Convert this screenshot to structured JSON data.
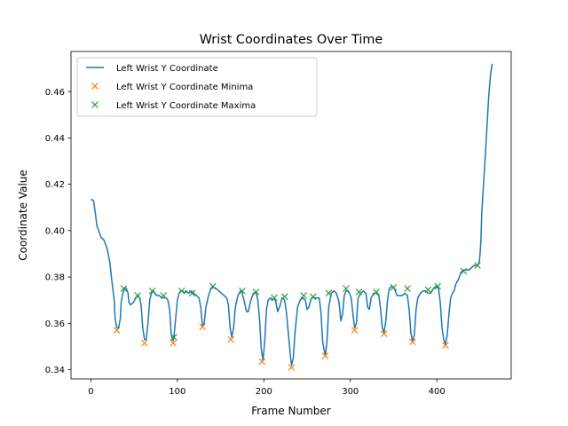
{
  "chart_data": {
    "type": "line",
    "title": "Wrist Coordinates Over Time",
    "xlabel": "Frame Number",
    "ylabel": "Coordinate Value",
    "xlim": [
      -23,
      486
    ],
    "ylim": [
      0.336,
      0.4773
    ],
    "xticks": [
      0,
      100,
      200,
      300,
      400
    ],
    "yticks": [
      0.34,
      0.36,
      0.38,
      0.4,
      0.42,
      0.44,
      0.46
    ],
    "ytick_labels": [
      "0.34",
      "0.36",
      "0.38",
      "0.40",
      "0.42",
      "0.44",
      "0.46"
    ],
    "legend_position": "upper-left",
    "colors": {
      "line": "#1f77b4",
      "minima": "#ff7f0e",
      "maxima": "#2ca02c"
    },
    "series": [
      {
        "name": "Left Wrist Y Coordinate",
        "kind": "line",
        "points": [
          [
            0,
            0.4135
          ],
          [
            3,
            0.413
          ],
          [
            5,
            0.408
          ],
          [
            7,
            0.402
          ],
          [
            10,
            0.399
          ],
          [
            12,
            0.397
          ],
          [
            15,
            0.396
          ],
          [
            17,
            0.394
          ],
          [
            19,
            0.392
          ],
          [
            20,
            0.39
          ],
          [
            22,
            0.386
          ],
          [
            24,
            0.379
          ],
          [
            25,
            0.376
          ],
          [
            27,
            0.37
          ],
          [
            28,
            0.362
          ],
          [
            30,
            0.358
          ],
          [
            32,
            0.358
          ],
          [
            34,
            0.362
          ],
          [
            35,
            0.369
          ],
          [
            37,
            0.373
          ],
          [
            39,
            0.3752
          ],
          [
            41,
            0.375
          ],
          [
            43,
            0.373
          ],
          [
            44,
            0.369
          ],
          [
            46,
            0.368
          ],
          [
            49,
            0.369
          ],
          [
            52,
            0.371
          ],
          [
            55,
            0.372
          ],
          [
            57,
            0.37
          ],
          [
            58,
            0.368
          ],
          [
            60,
            0.358
          ],
          [
            62,
            0.353
          ],
          [
            64,
            0.353
          ],
          [
            66,
            0.36
          ],
          [
            68,
            0.37
          ],
          [
            70,
            0.373
          ],
          [
            72,
            0.374
          ],
          [
            74,
            0.373
          ],
          [
            76,
            0.372
          ],
          [
            79,
            0.372
          ],
          [
            82,
            0.371
          ],
          [
            84,
            0.371
          ],
          [
            87,
            0.371
          ],
          [
            89,
            0.37
          ],
          [
            91,
            0.366
          ],
          [
            93,
            0.355
          ],
          [
            95,
            0.3525
          ],
          [
            96,
            0.354
          ],
          [
            98,
            0.362
          ],
          [
            100,
            0.37
          ],
          [
            102,
            0.373
          ],
          [
            104,
            0.374
          ],
          [
            106,
            0.374
          ],
          [
            108,
            0.373
          ],
          [
            110,
            0.374
          ],
          [
            113,
            0.373
          ],
          [
            116,
            0.374
          ],
          [
            119,
            0.373
          ],
          [
            122,
            0.372
          ],
          [
            125,
            0.371
          ],
          [
            127,
            0.367
          ],
          [
            129,
            0.359
          ],
          [
            131,
            0.36
          ],
          [
            133,
            0.367
          ],
          [
            136,
            0.372
          ],
          [
            139,
            0.375
          ],
          [
            142,
            0.3755
          ],
          [
            145,
            0.375
          ],
          [
            148,
            0.374
          ],
          [
            151,
            0.373
          ],
          [
            154,
            0.372
          ],
          [
            157,
            0.371
          ],
          [
            159,
            0.368
          ],
          [
            161,
            0.358
          ],
          [
            163,
            0.354
          ],
          [
            165,
            0.358
          ],
          [
            167,
            0.367
          ],
          [
            170,
            0.372
          ],
          [
            173,
            0.374
          ],
          [
            175,
            0.373
          ],
          [
            177,
            0.37
          ],
          [
            180,
            0.365
          ],
          [
            182,
            0.365
          ],
          [
            185,
            0.37
          ],
          [
            188,
            0.373
          ],
          [
            191,
            0.3735
          ],
          [
            193,
            0.37
          ],
          [
            195,
            0.362
          ],
          [
            197,
            0.349
          ],
          [
            199,
            0.344
          ],
          [
            201,
            0.352
          ],
          [
            203,
            0.366
          ],
          [
            205,
            0.37
          ],
          [
            208,
            0.371
          ],
          [
            210,
            0.37
          ],
          [
            212,
            0.371
          ],
          [
            214,
            0.369
          ],
          [
            216,
            0.365
          ],
          [
            219,
            0.368
          ],
          [
            221,
            0.371
          ],
          [
            224,
            0.37
          ],
          [
            226,
            0.365
          ],
          [
            228,
            0.357
          ],
          [
            231,
            0.345
          ],
          [
            232,
            0.342
          ],
          [
            234,
            0.345
          ],
          [
            236,
            0.356
          ],
          [
            239,
            0.367
          ],
          [
            242,
            0.37
          ],
          [
            245,
            0.371
          ],
          [
            248,
            0.37
          ],
          [
            250,
            0.366
          ],
          [
            252,
            0.367
          ],
          [
            255,
            0.371
          ],
          [
            258,
            0.371
          ],
          [
            261,
            0.371
          ],
          [
            264,
            0.371
          ],
          [
            266,
            0.365
          ],
          [
            268,
            0.352
          ],
          [
            271,
            0.346
          ],
          [
            273,
            0.352
          ],
          [
            275,
            0.367
          ],
          [
            278,
            0.373
          ],
          [
            281,
            0.374
          ],
          [
            284,
            0.373
          ],
          [
            287,
            0.369
          ],
          [
            289,
            0.361
          ],
          [
            291,
            0.364
          ],
          [
            293,
            0.372
          ],
          [
            295,
            0.374
          ],
          [
            297,
            0.374
          ],
          [
            299,
            0.373
          ],
          [
            301,
            0.371
          ],
          [
            303,
            0.364
          ],
          [
            305,
            0.358
          ],
          [
            307,
            0.36
          ],
          [
            309,
            0.371
          ],
          [
            312,
            0.373
          ],
          [
            315,
            0.374
          ],
          [
            318,
            0.373
          ],
          [
            320,
            0.367
          ],
          [
            322,
            0.366
          ],
          [
            324,
            0.371
          ],
          [
            327,
            0.373
          ],
          [
            330,
            0.373
          ],
          [
            333,
            0.372
          ],
          [
            335,
            0.366
          ],
          [
            337,
            0.358
          ],
          [
            339,
            0.356
          ],
          [
            341,
            0.361
          ],
          [
            343,
            0.37
          ],
          [
            345,
            0.375
          ],
          [
            348,
            0.376
          ],
          [
            351,
            0.375
          ],
          [
            354,
            0.372
          ],
          [
            357,
            0.372
          ],
          [
            360,
            0.372
          ],
          [
            363,
            0.373
          ],
          [
            366,
            0.372
          ],
          [
            368,
            0.366
          ],
          [
            370,
            0.356
          ],
          [
            372,
            0.352
          ],
          [
            374,
            0.355
          ],
          [
            376,
            0.366
          ],
          [
            378,
            0.371
          ],
          [
            381,
            0.373
          ],
          [
            384,
            0.374
          ],
          [
            387,
            0.374
          ],
          [
            390,
            0.373
          ],
          [
            393,
            0.373
          ],
          [
            396,
            0.375
          ],
          [
            399,
            0.376
          ],
          [
            402,
            0.375
          ],
          [
            404,
            0.369
          ],
          [
            406,
            0.358
          ],
          [
            408,
            0.353
          ],
          [
            410,
            0.351
          ],
          [
            412,
            0.355
          ],
          [
            414,
            0.364
          ],
          [
            416,
            0.371
          ],
          [
            418,
            0.373
          ],
          [
            420,
            0.374
          ],
          [
            422,
            0.377
          ],
          [
            425,
            0.379
          ],
          [
            428,
            0.382
          ],
          [
            431,
            0.383
          ],
          [
            434,
            0.383
          ],
          [
            437,
            0.383
          ],
          [
            440,
            0.384
          ],
          [
            443,
            0.385
          ],
          [
            446,
            0.385
          ],
          [
            449,
            0.386
          ],
          [
            450,
            0.39
          ],
          [
            451,
            0.396
          ],
          [
            452,
            0.408
          ],
          [
            453,
            0.414
          ],
          [
            454,
            0.42
          ],
          [
            456,
            0.432
          ],
          [
            458,
            0.445
          ],
          [
            460,
            0.458
          ],
          [
            462,
            0.467
          ],
          [
            464,
            0.472
          ]
        ]
      },
      {
        "name": "Left Wrist Y Coordinate Minima",
        "kind": "marker-x",
        "points": [
          [
            30,
            0.357
          ],
          [
            62,
            0.3515
          ],
          [
            95,
            0.3515
          ],
          [
            129,
            0.3585
          ],
          [
            162,
            0.353
          ],
          [
            198,
            0.3435
          ],
          [
            232,
            0.341
          ],
          [
            271,
            0.346
          ],
          [
            305,
            0.357
          ],
          [
            339,
            0.3555
          ],
          [
            372,
            0.352
          ],
          [
            410,
            0.3505
          ]
        ]
      },
      {
        "name": "Left Wrist Y Coordinate Maxima",
        "kind": "marker-x",
        "points": [
          [
            38,
            0.375
          ],
          [
            54,
            0.372
          ],
          [
            71,
            0.374
          ],
          [
            84,
            0.372
          ],
          [
            96,
            0.354
          ],
          [
            105,
            0.374
          ],
          [
            117,
            0.373
          ],
          [
            141,
            0.376
          ],
          [
            175,
            0.374
          ],
          [
            191,
            0.3735
          ],
          [
            212,
            0.371
          ],
          [
            224,
            0.3715
          ],
          [
            246,
            0.372
          ],
          [
            257,
            0.3715
          ],
          [
            275,
            0.373
          ],
          [
            295,
            0.375
          ],
          [
            310,
            0.3735
          ],
          [
            330,
            0.3735
          ],
          [
            350,
            0.3755
          ],
          [
            366,
            0.375
          ],
          [
            390,
            0.3745
          ],
          [
            401,
            0.376
          ],
          [
            431,
            0.3825
          ],
          [
            447,
            0.385
          ]
        ]
      }
    ]
  }
}
